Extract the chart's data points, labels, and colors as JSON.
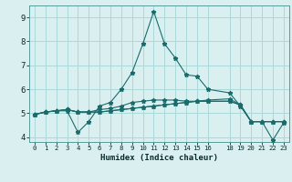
{
  "xlabel": "Humidex (Indice chaleur)",
  "ylabel": "",
  "xlim": [
    -0.5,
    23.5
  ],
  "ylim": [
    3.8,
    9.5
  ],
  "xticks": [
    0,
    1,
    2,
    3,
    4,
    5,
    6,
    7,
    8,
    9,
    10,
    11,
    12,
    13,
    14,
    15,
    16,
    18,
    19,
    20,
    21,
    22,
    23
  ],
  "yticks": [
    4,
    5,
    6,
    7,
    8,
    9
  ],
  "background_color": "#daf0f0",
  "grid_color": "#aad8d8",
  "line_color": "#1a6b6b",
  "lines": [
    [
      4.95,
      5.05,
      5.1,
      5.1,
      4.2,
      4.65,
      5.3,
      5.45,
      6.0,
      6.7,
      7.9,
      9.25,
      7.9,
      7.3,
      6.6,
      6.55,
      6.0,
      5.85,
      5.3,
      4.65,
      4.65,
      3.88,
      4.6
    ],
    [
      4.95,
      5.05,
      5.1,
      5.15,
      5.05,
      5.05,
      5.15,
      5.2,
      5.3,
      5.45,
      5.5,
      5.55,
      5.55,
      5.55,
      5.5,
      5.5,
      5.5,
      5.5,
      5.35,
      4.65,
      4.65,
      4.65,
      4.65
    ],
    [
      4.95,
      5.05,
      5.1,
      5.15,
      5.05,
      5.05,
      5.05,
      5.1,
      5.15,
      5.2,
      5.25,
      5.3,
      5.35,
      5.4,
      5.45,
      5.5,
      5.55,
      5.6,
      5.35,
      4.65,
      4.65,
      4.65,
      4.65
    ],
    [
      4.95,
      5.05,
      5.1,
      5.15,
      5.05,
      5.05,
      5.05,
      5.1,
      5.15,
      5.2,
      5.25,
      5.3,
      5.35,
      5.4,
      5.45,
      5.5,
      5.5,
      5.5,
      5.35,
      4.65,
      4.65,
      4.65,
      4.65
    ]
  ],
  "x_values": [
    0,
    1,
    2,
    3,
    4,
    5,
    6,
    7,
    8,
    9,
    10,
    11,
    12,
    13,
    14,
    15,
    16,
    18,
    19,
    20,
    21,
    22,
    23
  ]
}
